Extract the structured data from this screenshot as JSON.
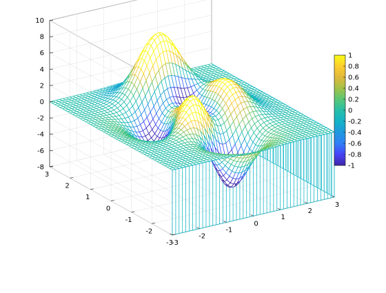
{
  "chart_data": {
    "type": "surface",
    "function": "peaks",
    "title": "",
    "xlabel": "",
    "ylabel": "",
    "zlabel": "",
    "xlim": [
      -3,
      3
    ],
    "ylim": [
      -3,
      3
    ],
    "zlim": [
      -8,
      10
    ],
    "clim": [
      -1,
      1
    ],
    "x_ticks": [
      "-3",
      "-2",
      "-1",
      "0",
      "1",
      "2",
      "3"
    ],
    "y_ticks": [
      "-3",
      "-2",
      "-1",
      "0",
      "1",
      "2",
      "3"
    ],
    "z_ticks": [
      "-8",
      "-6",
      "-4",
      "-2",
      "0",
      "2",
      "4",
      "6",
      "8",
      "10"
    ],
    "colorbar_ticks": [
      "1",
      "0.8",
      "0.6",
      "0.4",
      "0.2",
      "0",
      "-0.2",
      "-0.4",
      "-0.6",
      "-0.8",
      "-1"
    ],
    "colormap": [
      "#3e26a8",
      "#4743f8",
      "#2f7ff7",
      "#1f99de",
      "#14b2c7",
      "#26bfa9",
      "#5ac776",
      "#a2c248",
      "#e0b93b",
      "#fcce2e",
      "#f9fb15"
    ],
    "mesh_color": "#18b8c9",
    "grid": true,
    "legend": "colorbar-right"
  }
}
